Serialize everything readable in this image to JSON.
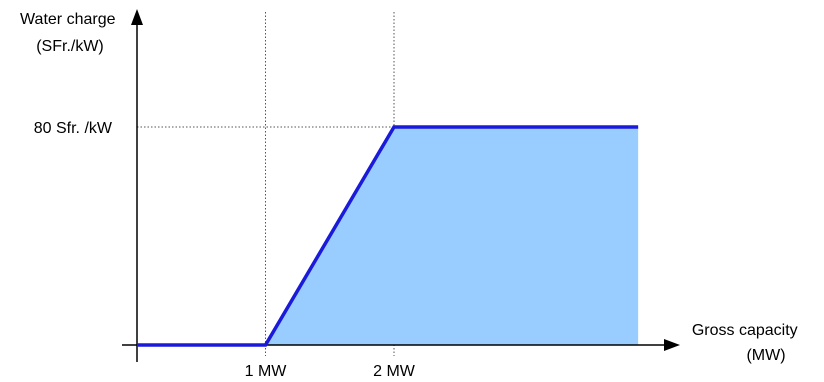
{
  "chart_data": {
    "type": "area",
    "x_unit": "MW",
    "y_unit": "Sfr./kW",
    "series": [
      {
        "x": [
          0,
          1,
          2,
          3.9
        ],
        "y": [
          0,
          0,
          80,
          80
        ]
      }
    ],
    "xlim": [
      0,
      4.3
    ],
    "ylim": [
      0,
      100
    ],
    "x_ticks": [
      {
        "value": 1,
        "label": "1 MW"
      },
      {
        "value": 2,
        "label": "2 MW"
      }
    ],
    "y_ticks": [
      {
        "value": 80,
        "label": "80 Sfr. /kW"
      }
    ],
    "ylabel_lines": [
      "Water charge",
      "(SFr./kW)"
    ],
    "xlabel_lines": [
      "Gross capacity",
      "(MW)"
    ],
    "grid": "dotted reference lines at ticks",
    "colors": {
      "fill": "#99ccff",
      "line": "#1a1adb",
      "axis": "#000000",
      "guide": "#555555"
    }
  }
}
